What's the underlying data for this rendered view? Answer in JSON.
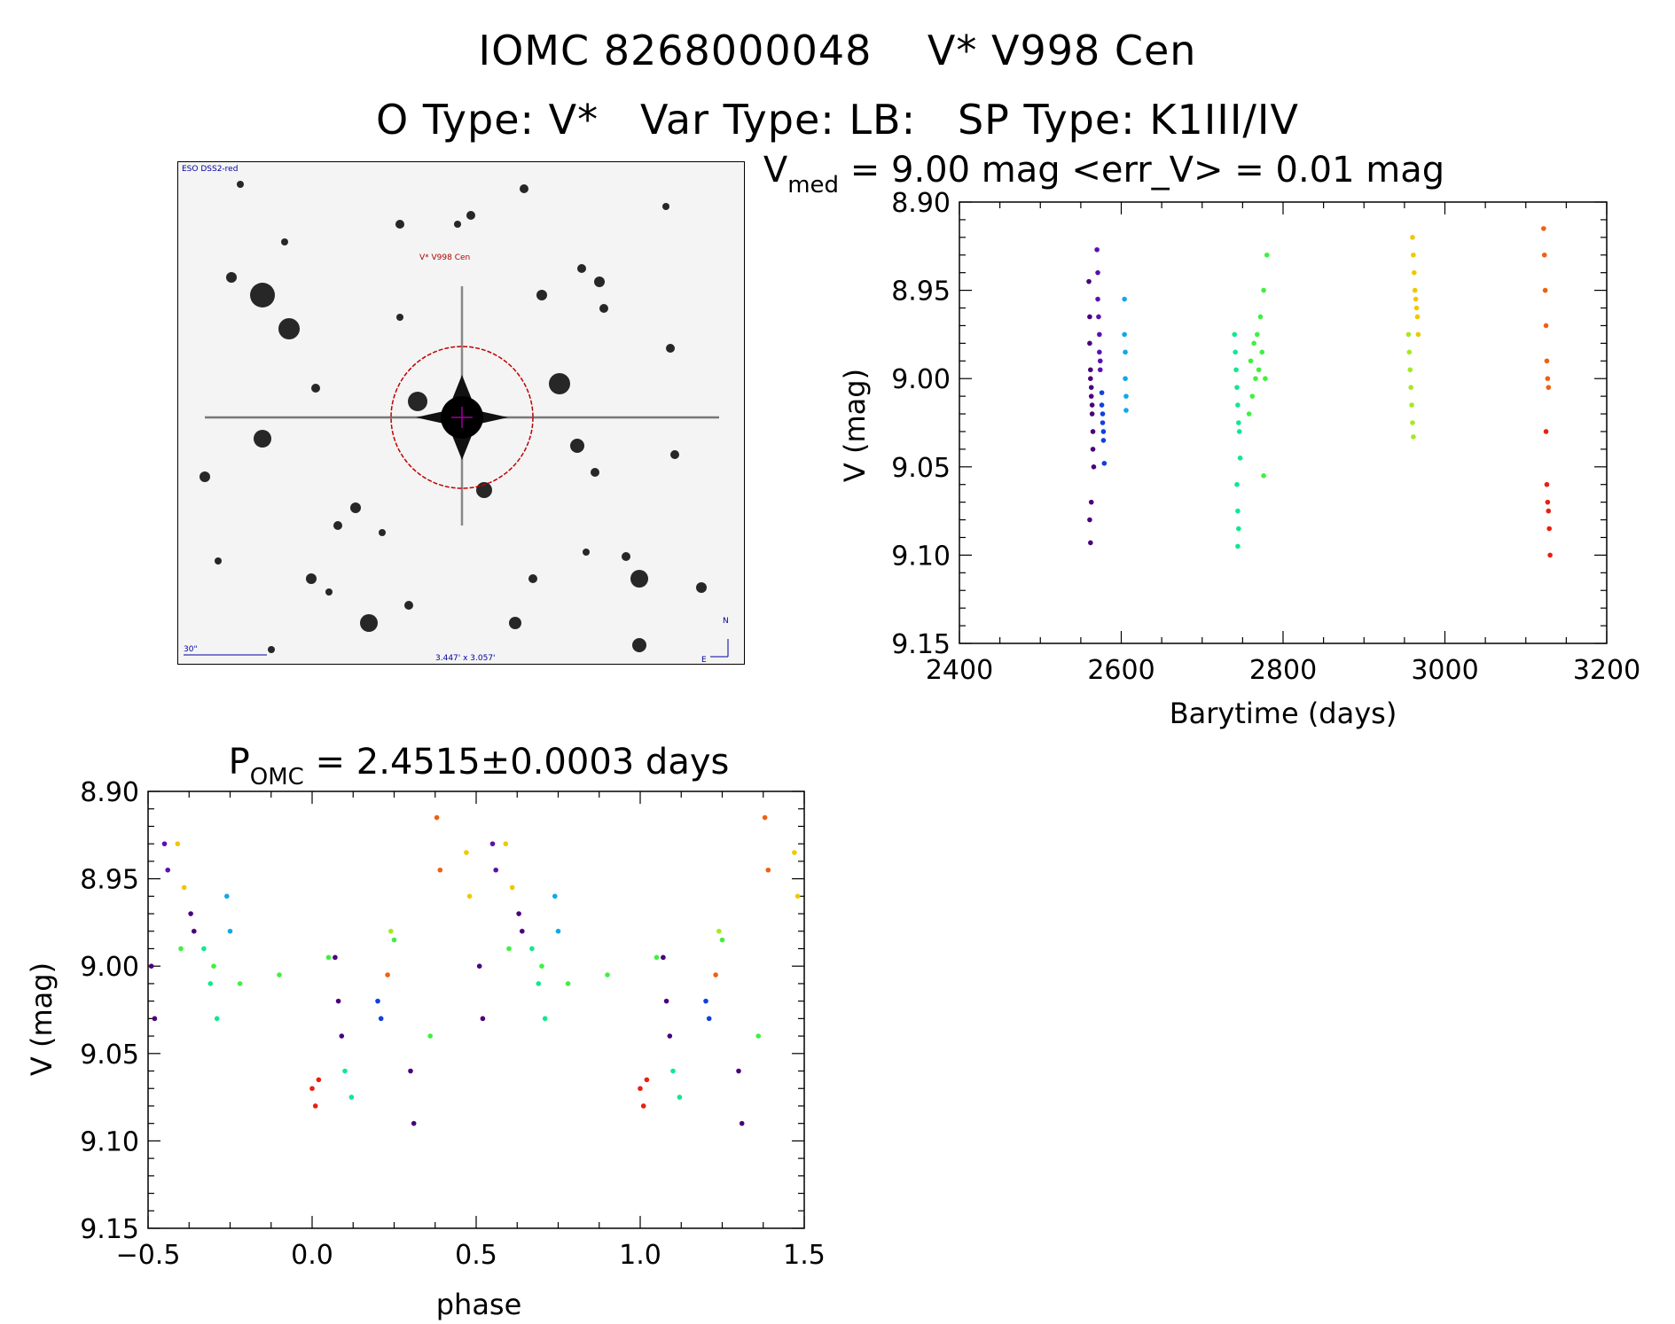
{
  "header": {
    "line1_id": "IOMC 8268000048",
    "line1_name": "V* V998 Cen",
    "line2_otype": "O Type: V*",
    "line2_vartype": "Var Type: LB:",
    "line2_sptype": "SP Type: K1III/IV"
  },
  "finder": {
    "survey_label": "ESO DSS2-red",
    "target_label": "V* V998 Cen",
    "scale_label": "30\"",
    "fov_label": "3.447' x 3.057'",
    "compass_n": "N",
    "compass_e": "E",
    "colors": {
      "circle": "#c00000",
      "target_label": "#b00000",
      "annotation": "#0000a0",
      "cross": "#a000a0"
    }
  },
  "chart_data": [
    {
      "id": "light_curve",
      "type": "scatter",
      "title_prefix": "V",
      "title_sub": "med",
      "title_rest": " = 9.00 mag <err_V> = 0.01 mag",
      "xlabel": "Barytime (days)",
      "ylabel": "V (mag)",
      "xlim": [
        2400,
        3200
      ],
      "ylim": [
        9.15,
        8.9
      ],
      "y_inverted": true,
      "xticks": [
        "2400",
        "2600",
        "2800",
        "3000",
        "3200"
      ],
      "yticks": [
        "8.90",
        "8.95",
        "9.00",
        "9.05",
        "9.10",
        "9.15"
      ],
      "xtick_values": [
        2400,
        2600,
        2800,
        3000,
        3200
      ],
      "ytick_values": [
        8.9,
        8.95,
        9.0,
        9.05,
        9.1,
        9.15
      ],
      "series": [
        {
          "color": "#4a007a",
          "x": [
            2560,
            2561,
            2561,
            2562,
            2562,
            2563,
            2563,
            2564,
            2564,
            2565,
            2565,
            2566,
            2561,
            2562,
            2563
          ],
          "y": [
            8.945,
            8.965,
            8.98,
            8.995,
            9.0,
            9.005,
            9.01,
            9.015,
            9.02,
            9.03,
            9.04,
            9.05,
            9.08,
            9.093,
            9.07
          ]
        },
        {
          "color": "#5a10b0",
          "x": [
            2570,
            2571,
            2571,
            2572,
            2573,
            2573,
            2574,
            2574
          ],
          "y": [
            8.927,
            8.94,
            8.955,
            8.965,
            8.975,
            8.985,
            8.99,
            8.995
          ]
        },
        {
          "color": "#1040e0",
          "x": [
            2576,
            2576,
            2577,
            2577,
            2578,
            2578,
            2579
          ],
          "y": [
            9.008,
            9.015,
            9.02,
            9.025,
            9.03,
            9.035,
            9.048
          ]
        },
        {
          "color": "#10a8e8",
          "x": [
            2604,
            2604,
            2605,
            2605,
            2606,
            2606
          ],
          "y": [
            8.955,
            8.975,
            8.985,
            9.0,
            9.01,
            9.018
          ]
        },
        {
          "color": "#10e890",
          "x": [
            2740,
            2741,
            2742,
            2743,
            2744,
            2745,
            2746,
            2747,
            2743,
            2744,
            2745,
            2744
          ],
          "y": [
            8.975,
            8.985,
            8.995,
            9.005,
            9.015,
            9.025,
            9.03,
            9.045,
            9.06,
            9.075,
            9.085,
            9.095
          ]
        },
        {
          "color": "#40f040",
          "x": [
            2758,
            2760,
            2762,
            2764,
            2766,
            2768,
            2770,
            2772,
            2774,
            2776,
            2778,
            2780,
            2776
          ],
          "y": [
            9.02,
            8.99,
            9.01,
            8.98,
            9.0,
            8.975,
            8.995,
            8.965,
            8.985,
            8.95,
            9.0,
            8.93,
            9.055
          ]
        },
        {
          "color": "#a8e820",
          "x": [
            2955,
            2956,
            2957,
            2958,
            2959,
            2960,
            2961
          ],
          "y": [
            8.975,
            8.985,
            8.995,
            9.005,
            9.015,
            9.025,
            9.033
          ]
        },
        {
          "color": "#f0c800",
          "x": [
            2960,
            2961,
            2962,
            2963,
            2964,
            2965,
            2966,
            2967
          ],
          "y": [
            8.92,
            8.93,
            8.94,
            8.95,
            8.955,
            8.96,
            8.965,
            8.975
          ]
        },
        {
          "color": "#f06010",
          "x": [
            3122,
            3123,
            3124,
            3125,
            3126,
            3127,
            3128
          ],
          "y": [
            8.915,
            8.93,
            8.95,
            8.97,
            8.99,
            9.0,
            9.005
          ]
        },
        {
          "color": "#e82010",
          "x": [
            3125,
            3126,
            3127,
            3128,
            3129,
            3130
          ],
          "y": [
            9.03,
            9.06,
            9.07,
            9.075,
            9.085,
            9.1
          ]
        }
      ]
    },
    {
      "id": "phase_curve",
      "type": "scatter",
      "title_prefix": "P",
      "title_sub": "OMC",
      "title_rest": " = 2.4515±0.0003 days",
      "xlabel": "phase",
      "ylabel": "V (mag)",
      "xlim": [
        -0.5,
        1.5
      ],
      "ylim": [
        9.15,
        8.9
      ],
      "y_inverted": true,
      "xticks": [
        "−0.5",
        "0.0",
        "0.5",
        "1.0",
        "1.5"
      ],
      "yticks": [
        "8.90",
        "8.95",
        "9.00",
        "9.05",
        "9.10",
        "9.15"
      ],
      "xtick_values": [
        -0.5,
        0.0,
        0.5,
        1.0,
        1.5
      ],
      "ytick_values": [
        8.9,
        8.95,
        9.0,
        9.05,
        9.1,
        9.15
      ],
      "series": [
        {
          "color": "#4a007a",
          "x": [
            -0.49,
            -0.48,
            -0.37,
            -0.36,
            0.07,
            0.08,
            0.09,
            0.3,
            0.31,
            0.51,
            0.52,
            0.63,
            0.64,
            1.07,
            1.08,
            1.09,
            1.3,
            1.31
          ],
          "y": [
            9.0,
            9.03,
            8.97,
            8.98,
            8.995,
            9.02,
            9.04,
            9.06,
            9.09,
            9.0,
            9.03,
            8.97,
            8.98,
            8.995,
            9.02,
            9.04,
            9.06,
            9.09
          ]
        },
        {
          "color": "#5a10b0",
          "x": [
            -0.45,
            -0.44,
            0.55,
            0.56
          ],
          "y": [
            8.93,
            8.945,
            8.93,
            8.945
          ]
        },
        {
          "color": "#1040e0",
          "x": [
            0.2,
            0.21,
            1.2,
            1.21
          ],
          "y": [
            9.02,
            9.03,
            9.02,
            9.03
          ]
        },
        {
          "color": "#10a8e8",
          "x": [
            -0.26,
            -0.25,
            0.74,
            0.75
          ],
          "y": [
            8.96,
            8.98,
            8.96,
            8.98
          ]
        },
        {
          "color": "#10e890",
          "x": [
            -0.33,
            -0.31,
            -0.29,
            0.1,
            0.12,
            0.67,
            0.69,
            0.71,
            1.1,
            1.12
          ],
          "y": [
            8.99,
            9.01,
            9.03,
            9.06,
            9.075,
            8.99,
            9.01,
            9.03,
            9.06,
            9.075
          ]
        },
        {
          "color": "#40f040",
          "x": [
            -0.4,
            -0.3,
            -0.22,
            -0.1,
            0.05,
            0.25,
            0.36,
            0.6,
            0.7,
            0.78,
            0.9,
            1.05,
            1.25,
            1.36
          ],
          "y": [
            8.99,
            9.0,
            9.01,
            9.005,
            8.995,
            8.985,
            9.04,
            8.99,
            9.0,
            9.01,
            9.005,
            8.995,
            8.985,
            9.04
          ]
        },
        {
          "color": "#a8e820",
          "x": [
            0.24,
            1.24
          ],
          "y": [
            8.98,
            8.98
          ]
        },
        {
          "color": "#f0c800",
          "x": [
            -0.41,
            -0.39,
            0.47,
            0.48,
            0.59,
            0.61,
            1.47,
            1.48
          ],
          "y": [
            8.93,
            8.955,
            8.935,
            8.96,
            8.93,
            8.955,
            8.935,
            8.96
          ]
        },
        {
          "color": "#f06010",
          "x": [
            0.38,
            0.39,
            0.23,
            1.38,
            1.39,
            1.23
          ],
          "y": [
            8.915,
            8.945,
            9.005,
            8.915,
            8.945,
            9.005
          ]
        },
        {
          "color": "#e82010",
          "x": [
            0.0,
            0.01,
            0.02,
            1.0,
            1.01,
            1.02
          ],
          "y": [
            9.07,
            9.08,
            9.065,
            9.07,
            9.08,
            9.065
          ]
        }
      ]
    }
  ]
}
